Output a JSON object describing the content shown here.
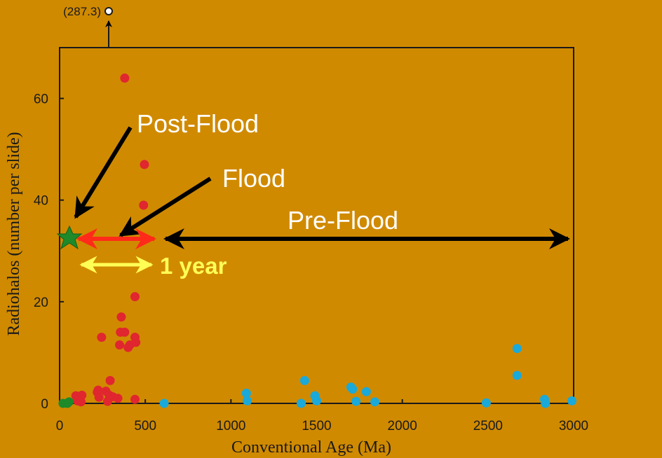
{
  "chart_data": {
    "type": "scatter",
    "xlabel": "Conventional Age (Ma)",
    "ylabel": "Radiohalos (number per slide)",
    "xlim": [
      0,
      3000
    ],
    "ylim": [
      0,
      70
    ],
    "x_ticks": [
      0,
      500,
      1000,
      1500,
      2000,
      2500,
      3000
    ],
    "y_ticks": [
      0,
      20,
      40,
      60
    ],
    "grid": false,
    "colors": {
      "background": "#d08a00",
      "red": "#e0262f",
      "blue": "#1aa9d8",
      "green": "#1e8a2a",
      "arrow_black": "#000000",
      "arrow_red": "#ff2a1a",
      "arrow_yellow": "#ffff55"
    },
    "series": [
      {
        "color": "red",
        "points": [
          [
            95,
            1.5
          ],
          [
            105,
            0.5
          ],
          [
            115,
            1.2
          ],
          [
            125,
            0.3
          ],
          [
            130,
            1.6
          ],
          [
            220,
            2.2
          ],
          [
            225,
            2.6
          ],
          [
            230,
            1.2
          ],
          [
            245,
            13
          ],
          [
            270,
            2.4
          ],
          [
            280,
            0.4
          ],
          [
            290,
            1.6
          ],
          [
            295,
            4.5
          ],
          [
            310,
            1.3
          ],
          [
            340,
            1
          ],
          [
            350,
            11.5
          ],
          [
            355,
            14
          ],
          [
            360,
            17
          ],
          [
            380,
            14
          ],
          [
            380,
            64
          ],
          [
            400,
            11
          ],
          [
            410,
            11.5
          ],
          [
            440,
            13
          ],
          [
            440,
            21
          ],
          [
            440,
            0.8
          ],
          [
            445,
            12
          ],
          [
            490,
            39
          ],
          [
            495,
            47
          ]
        ]
      },
      {
        "color": "blue",
        "points": [
          [
            610,
            0
          ],
          [
            1090,
            2
          ],
          [
            1095,
            0.5
          ],
          [
            1410,
            0
          ],
          [
            1430,
            4.5
          ],
          [
            1490,
            1.5
          ],
          [
            1500,
            0.5
          ],
          [
            1700,
            3.2
          ],
          [
            1710,
            2.8
          ],
          [
            1730,
            0.4
          ],
          [
            1790,
            2.3
          ],
          [
            1840,
            0.3
          ],
          [
            2490,
            0.1
          ],
          [
            2670,
            10.8
          ],
          [
            2670,
            5.5
          ],
          [
            2830,
            0.8
          ],
          [
            2835,
            0
          ],
          [
            2990,
            0.5
          ]
        ]
      },
      {
        "color": "green",
        "points": [
          [
            20,
            0
          ],
          [
            45,
            0
          ],
          [
            55,
            0.3
          ]
        ]
      }
    ],
    "outlier": {
      "x": 287.3,
      "label": "(287.3)"
    },
    "annotations": {
      "post_flood": "Post-Flood",
      "flood": "Flood",
      "pre_flood": "Pre-Flood",
      "one_year": "1 year"
    }
  }
}
